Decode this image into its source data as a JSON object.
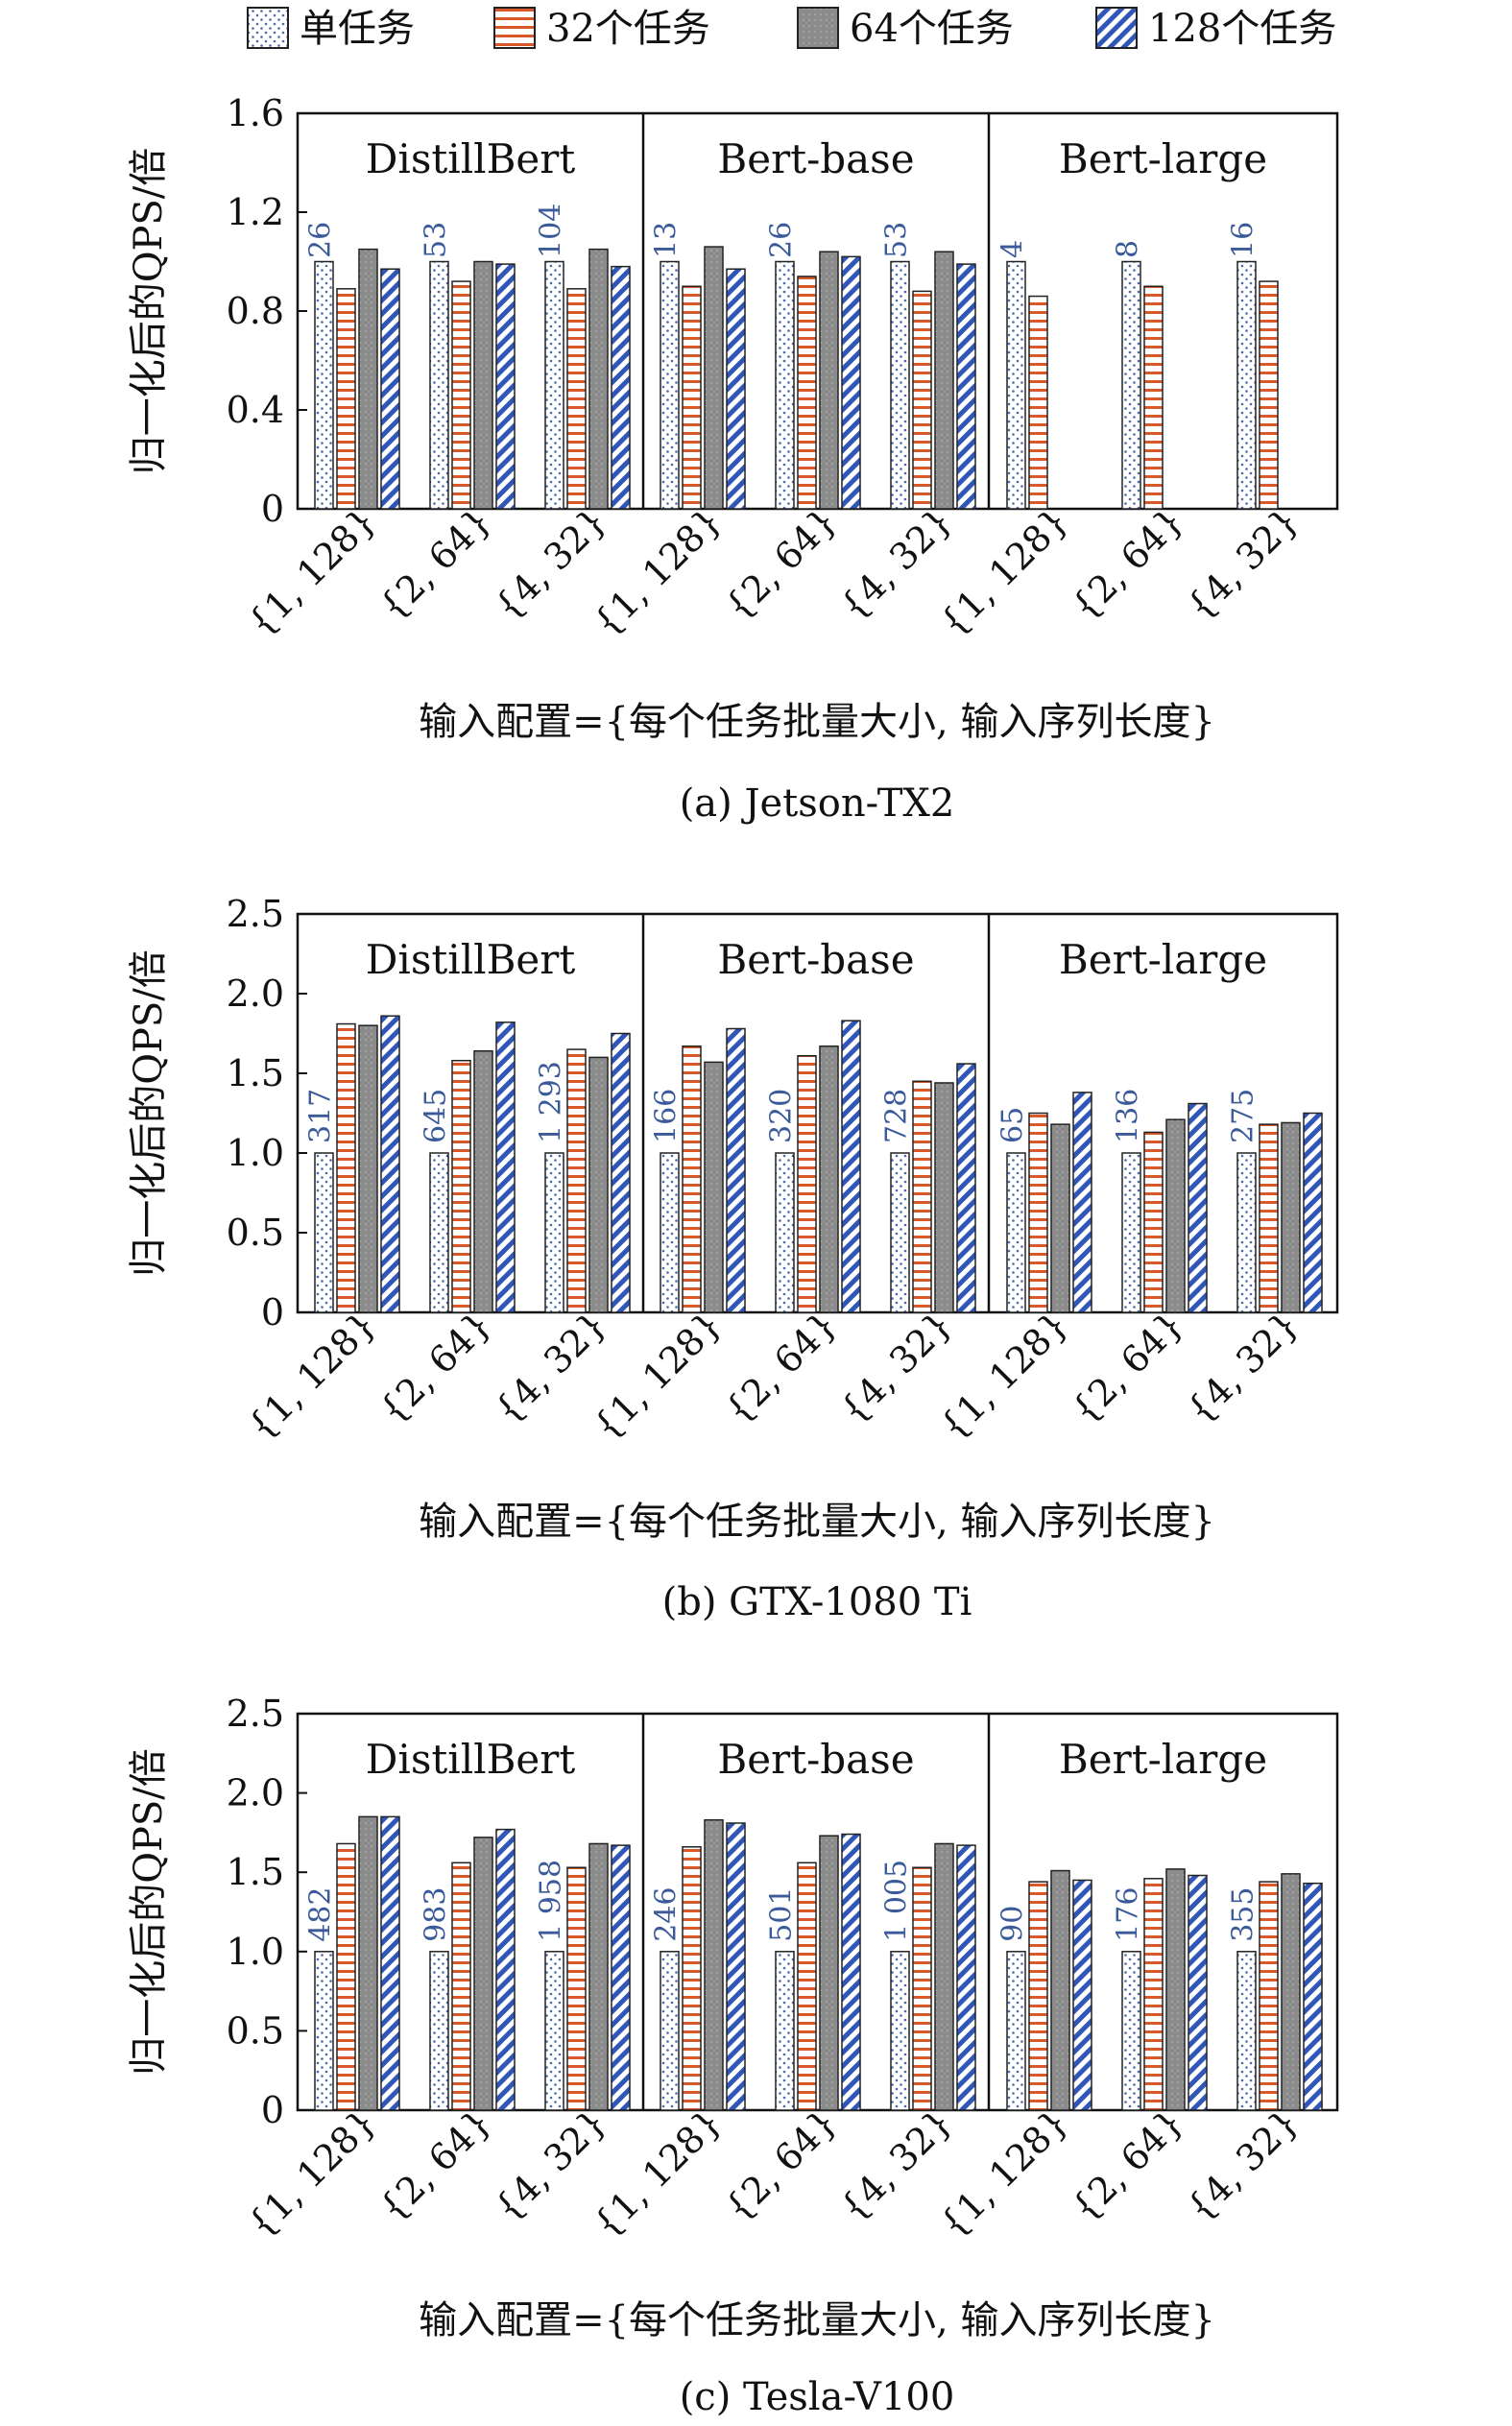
{
  "legend": [
    {
      "label": "单任务",
      "pattern": "dots"
    },
    {
      "label": "32个任务",
      "pattern": "hlines"
    },
    {
      "label": "64个任务",
      "pattern": "gray"
    },
    {
      "label": "128个任务",
      "pattern": "diag"
    }
  ],
  "colors": {
    "dots": "#4a6aaa",
    "hlines": "#d9592b",
    "gray": "#8c8c8c",
    "diag": "#2f56b8",
    "data_label": "#3a5a9a"
  },
  "chart_data": [
    {
      "type": "bar",
      "caption": "(a)  Jetson-TX2",
      "xlabel": "输入配置={每个任务批量大小, 输入序列长度}",
      "ylabel": "归一化后的QPS/倍",
      "ylim": [
        0,
        1.6
      ],
      "yticks": [
        "0",
        "0.4",
        "0.8",
        "1.2",
        "1.6"
      ],
      "ytick_values": [
        0,
        0.4,
        0.8,
        1.2,
        1.6
      ],
      "groups": [
        {
          "model": "DistillBert",
          "categories": [
            "{1, 128}",
            "{2, 64}",
            "{4, 32}"
          ],
          "labels": [
            "26",
            "53",
            "104"
          ],
          "series": [
            {
              "name": "单任务",
              "values": [
                1.0,
                1.0,
                1.0
              ]
            },
            {
              "name": "32个任务",
              "values": [
                0.89,
                0.92,
                0.89
              ]
            },
            {
              "name": "64个任务",
              "values": [
                1.05,
                1.0,
                1.05
              ]
            },
            {
              "name": "128个任务",
              "values": [
                0.97,
                0.99,
                0.98
              ]
            }
          ]
        },
        {
          "model": "Bert-base",
          "categories": [
            "{1, 128}",
            "{2, 64}",
            "{4, 32}"
          ],
          "labels": [
            "13",
            "26",
            "53"
          ],
          "series": [
            {
              "name": "单任务",
              "values": [
                1.0,
                1.0,
                1.0
              ]
            },
            {
              "name": "32个任务",
              "values": [
                0.9,
                0.94,
                0.88
              ]
            },
            {
              "name": "64个任务",
              "values": [
                1.06,
                1.04,
                1.04
              ]
            },
            {
              "name": "128个任务",
              "values": [
                0.97,
                1.02,
                0.99
              ]
            }
          ]
        },
        {
          "model": "Bert-large",
          "categories": [
            "{1, 128}",
            "{2, 64}",
            "{4, 32}"
          ],
          "labels": [
            "4",
            "8",
            "16"
          ],
          "series": [
            {
              "name": "单任务",
              "values": [
                1.0,
                1.0,
                1.0
              ]
            },
            {
              "name": "32个任务",
              "values": [
                0.86,
                0.9,
                0.92
              ]
            },
            {
              "name": "64个任务",
              "values": [
                null,
                null,
                null
              ]
            },
            {
              "name": "128个任务",
              "values": [
                null,
                null,
                null
              ]
            }
          ]
        }
      ]
    },
    {
      "type": "bar",
      "caption": "(b)  GTX-1080 Ti",
      "xlabel": "输入配置={每个任务批量大小, 输入序列长度}",
      "ylabel": "归一化后的QPS/倍",
      "ylim": [
        0,
        2.5
      ],
      "yticks": [
        "0",
        "0.5",
        "1.0",
        "1.5",
        "2.0",
        "2.5"
      ],
      "ytick_values": [
        0,
        0.5,
        1.0,
        1.5,
        2.0,
        2.5
      ],
      "groups": [
        {
          "model": "DistillBert",
          "categories": [
            "{1, 128}",
            "{2, 64}",
            "{4, 32}"
          ],
          "labels": [
            "317",
            "645",
            "1 293"
          ],
          "series": [
            {
              "name": "单任务",
              "values": [
                1.0,
                1.0,
                1.0
              ]
            },
            {
              "name": "32个任务",
              "values": [
                1.81,
                1.58,
                1.65
              ]
            },
            {
              "name": "64个任务",
              "values": [
                1.8,
                1.64,
                1.6
              ]
            },
            {
              "name": "128个任务",
              "values": [
                1.86,
                1.82,
                1.75
              ]
            }
          ]
        },
        {
          "model": "Bert-base",
          "categories": [
            "{1, 128}",
            "{2, 64}",
            "{4, 32}"
          ],
          "labels": [
            "166",
            "320",
            "728"
          ],
          "series": [
            {
              "name": "单任务",
              "values": [
                1.0,
                1.0,
                1.0
              ]
            },
            {
              "name": "32个任务",
              "values": [
                1.67,
                1.61,
                1.45
              ]
            },
            {
              "name": "64个任务",
              "values": [
                1.57,
                1.67,
                1.44
              ]
            },
            {
              "name": "128个任务",
              "values": [
                1.78,
                1.83,
                1.56
              ]
            }
          ]
        },
        {
          "model": "Bert-large",
          "categories": [
            "{1, 128}",
            "{2, 64}",
            "{4, 32}"
          ],
          "labels": [
            "65",
            "136",
            "275"
          ],
          "series": [
            {
              "name": "单任务",
              "values": [
                1.0,
                1.0,
                1.0
              ]
            },
            {
              "name": "32个任务",
              "values": [
                1.25,
                1.13,
                1.18
              ]
            },
            {
              "name": "64个任务",
              "values": [
                1.18,
                1.21,
                1.19
              ]
            },
            {
              "name": "128个任务",
              "values": [
                1.38,
                1.31,
                1.25
              ]
            }
          ]
        }
      ]
    },
    {
      "type": "bar",
      "caption": "(c)  Tesla-V100",
      "xlabel": "输入配置={每个任务批量大小, 输入序列长度}",
      "ylabel": "归一化后的QPS/倍",
      "ylim": [
        0,
        2.5
      ],
      "yticks": [
        "0",
        "0.5",
        "1.0",
        "1.5",
        "2.0",
        "2.5"
      ],
      "ytick_values": [
        0,
        0.5,
        1.0,
        1.5,
        2.0,
        2.5
      ],
      "groups": [
        {
          "model": "DistillBert",
          "categories": [
            "{1, 128}",
            "{2, 64}",
            "{4, 32}"
          ],
          "labels": [
            "482",
            "983",
            "1 958"
          ],
          "series": [
            {
              "name": "单任务",
              "values": [
                1.0,
                1.0,
                1.0
              ]
            },
            {
              "name": "32个任务",
              "values": [
                1.68,
                1.56,
                1.53
              ]
            },
            {
              "name": "64个任务",
              "values": [
                1.85,
                1.72,
                1.68
              ]
            },
            {
              "name": "128个任务",
              "values": [
                1.85,
                1.77,
                1.67
              ]
            }
          ]
        },
        {
          "model": "Bert-base",
          "categories": [
            "{1, 128}",
            "{2, 64}",
            "{4, 32}"
          ],
          "labels": [
            "246",
            "501",
            "1 005"
          ],
          "series": [
            {
              "name": "单任务",
              "values": [
                1.0,
                1.0,
                1.0
              ]
            },
            {
              "name": "32个任务",
              "values": [
                1.66,
                1.56,
                1.53
              ]
            },
            {
              "name": "64个任务",
              "values": [
                1.83,
                1.73,
                1.68
              ]
            },
            {
              "name": "128个任务",
              "values": [
                1.81,
                1.74,
                1.67
              ]
            }
          ]
        },
        {
          "model": "Bert-large",
          "categories": [
            "{1, 128}",
            "{2, 64}",
            "{4, 32}"
          ],
          "labels": [
            "90",
            "176",
            "355"
          ],
          "series": [
            {
              "name": "单任务",
              "values": [
                1.0,
                1.0,
                1.0
              ]
            },
            {
              "name": "32个任务",
              "values": [
                1.44,
                1.46,
                1.44
              ]
            },
            {
              "name": "64个任务",
              "values": [
                1.51,
                1.52,
                1.49
              ]
            },
            {
              "name": "128个任务",
              "values": [
                1.45,
                1.48,
                1.43
              ]
            }
          ]
        }
      ]
    }
  ]
}
